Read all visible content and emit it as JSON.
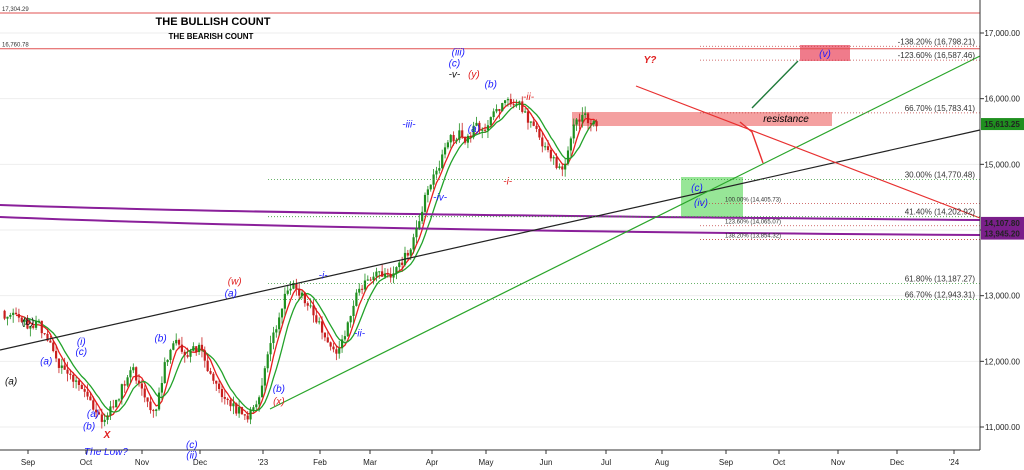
{
  "chart_data": {
    "type": "candlestick",
    "title": "THE BULLISH COUNT",
    "subtitle": "THE BEARISH COUNT",
    "colors": {
      "bull_title": "#1a1aff",
      "bear_title": "#e02020",
      "candle_up": "#1f8f1f",
      "candle_down": "#c81e1e",
      "ma_fast": "#e81e1e",
      "ma_slow": "#22a22a",
      "ma_long": "#8a1f9a",
      "trend_black": "#222222",
      "trend_green": "#2aa52a",
      "trend_red": "#e83030",
      "wave_blue": "#1a1aff",
      "wave_red": "#e02020",
      "wave_black": "#111111",
      "resistance_fill": "#f08080",
      "support_fill": "#7de07d",
      "target_fill": "#f07b8b",
      "target_text": "#1a1aff",
      "fib_dotted": "#3a9a3a",
      "fib_red": "#c04040",
      "price_label_bg": "#1f8f1f",
      "purple_label_bg": "#7a1f8a"
    },
    "x_axis": {
      "labels": [
        "Sep",
        "Oct",
        "Nov",
        "Dec",
        "'23",
        "Feb",
        "Mar",
        "Apr",
        "May",
        "Jun",
        "Jul",
        "Aug",
        "Sep",
        "Oct",
        "Nov",
        "Dec",
        "'24"
      ]
    },
    "y_axis": {
      "ticks": [
        "17,000.00",
        "16,000.00",
        "15,000.00",
        "14,000.00",
        "13,000.00",
        "12,000.00",
        "11,000.00"
      ],
      "range": [
        10850,
        17300
      ],
      "scale": "linear"
    },
    "top_lines": [
      {
        "label": "17,304.29",
        "value": 17304.29
      },
      {
        "label": "16,760.78",
        "value": 16760.78
      }
    ],
    "fib_levels": [
      {
        "label": "-138.20% (16,798.21)",
        "value": 16798.21,
        "color": "red"
      },
      {
        "label": "-123.60% (16,587.46)",
        "value": 16587.46,
        "color": "red"
      },
      {
        "label": "66.70% (15,783.41)",
        "value": 15783.41,
        "color": "red"
      },
      {
        "label": "30.00% (14,770.48)",
        "value": 14770.48,
        "color": "green"
      },
      {
        "label": "100.00% (14,405.73)",
        "value": 14405.73,
        "color": "red"
      },
      {
        "label": "41.40% (14,202.92)",
        "value": 14202.92,
        "color": "green"
      },
      {
        "label": "123.60% (14,065.07)",
        "value": 14065.07,
        "color": "red"
      },
      {
        "label": "138.20% (13,854.32)",
        "value": 13854.32,
        "color": "red"
      },
      {
        "label": "61.80% (13,187.27)",
        "value": 13187.27,
        "color": "green"
      },
      {
        "label": "66.70% (12,943.31)",
        "value": 12943.31,
        "color": "green"
      }
    ],
    "price_labels": [
      {
        "label": "15,613.25",
        "value": 15613.25,
        "kind": "price"
      },
      {
        "label": "14,107.80",
        "value": 14107.8,
        "kind": "ma"
      },
      {
        "label": "13,945.20",
        "value": 13945.2,
        "kind": "ma"
      }
    ],
    "annotations": {
      "resistance": "resistance",
      "target": "(v)",
      "support_c": "(c)",
      "support_iv": "(iv)",
      "x_marker": "X",
      "low_text": "The Low?",
      "y_marker": "Y?"
    },
    "wave_labels": [
      {
        "text": "(b)",
        "color": "black",
        "day": 0,
        "value": 12550
      },
      {
        "text": "(a)",
        "color": "black",
        "day": -13,
        "value": 11650
      },
      {
        "text": "(a)",
        "color": "blue",
        "day": 14,
        "value": 11950
      },
      {
        "text": "(i)",
        "color": "blue",
        "day": 41,
        "value": 12250
      },
      {
        "text": "(c)",
        "color": "blue",
        "day": 41,
        "value": 12100
      },
      {
        "text": "(a)",
        "color": "blue",
        "day": 50,
        "value": 11150
      },
      {
        "text": "(b)",
        "color": "blue",
        "day": 47,
        "value": 10960
      },
      {
        "text": "(b)",
        "color": "blue",
        "day": 102,
        "value": 12300
      },
      {
        "text": "(c)",
        "color": "blue",
        "day": 126,
        "value": 10680
      },
      {
        "text": "(ii)",
        "color": "blue",
        "day": 126,
        "value": 10520
      },
      {
        "text": "(w)",
        "color": "red",
        "day": 159,
        "value": 13170
      },
      {
        "text": "(a)",
        "color": "blue",
        "day": 156,
        "value": 12990
      },
      {
        "text": "(b)",
        "color": "blue",
        "day": 193,
        "value": 11530
      },
      {
        "text": "(x)",
        "color": "red",
        "day": 193,
        "value": 11340
      },
      {
        "text": "-i-",
        "color": "blue",
        "day": 227,
        "value": 13260
      },
      {
        "text": "-ii-",
        "color": "blue",
        "day": 255,
        "value": 12380
      },
      {
        "text": "-iii-",
        "color": "blue",
        "day": 293,
        "value": 15560
      },
      {
        "text": "-iv-",
        "color": "blue",
        "day": 317,
        "value": 14450
      },
      {
        "text": "(iii)",
        "color": "blue",
        "day": 331,
        "value": 16660
      },
      {
        "text": "(c)",
        "color": "blue",
        "day": 328,
        "value": 16490
      },
      {
        "text": "-v-",
        "color": "black",
        "day": 328,
        "value": 16320
      },
      {
        "text": "(y)",
        "color": "red",
        "day": 343,
        "value": 16320
      },
      {
        "text": "(b)",
        "color": "blue",
        "day": 356,
        "value": 16170
      },
      {
        "text": "(a)",
        "color": "blue",
        "day": 343,
        "value": 15490
      },
      {
        "text": "-i-",
        "color": "red",
        "day": 369,
        "value": 14690
      },
      {
        "text": "-ii-",
        "color": "red",
        "day": 385,
        "value": 15980
      }
    ],
    "grid": true,
    "legend": "none"
  }
}
